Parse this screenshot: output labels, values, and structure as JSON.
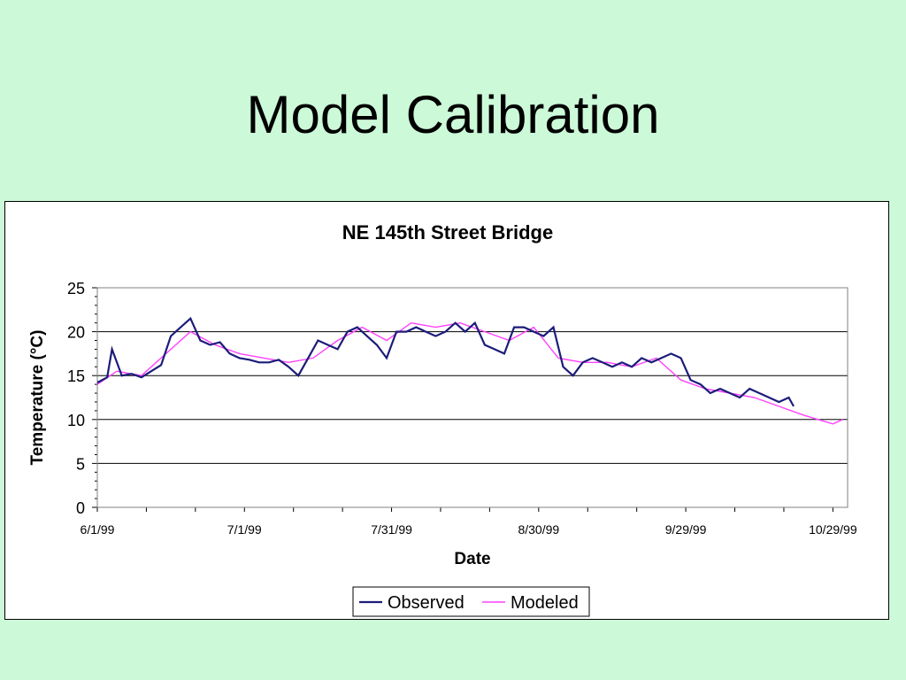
{
  "slide": {
    "title": "Model Calibration"
  },
  "colors": {
    "background": "#ccf9d8",
    "observed": "#1c1c7a",
    "modeled": "#ff40ff",
    "grid": "#000000"
  },
  "chart_data": {
    "type": "line",
    "title": "NE 145th Street Bridge",
    "xlabel": "Date",
    "ylabel": "Temperature (°C)",
    "ylim": [
      0,
      25
    ],
    "yticks": [
      0,
      5,
      10,
      15,
      20,
      25
    ],
    "xlim": [
      "1999-06-01",
      "1999-11-01"
    ],
    "xticks": [
      {
        "date": "1999-06-01",
        "label": "6/1/99"
      },
      {
        "date": "1999-07-01",
        "label": "7/1/99"
      },
      {
        "date": "1999-07-31",
        "label": "7/31/99"
      },
      {
        "date": "1999-08-30",
        "label": "8/30/99"
      },
      {
        "date": "1999-09-29",
        "label": "9/29/99"
      },
      {
        "date": "1999-10-29",
        "label": "10/29/99"
      }
    ],
    "grid": "horizontal",
    "legend": "bottom-center",
    "series": [
      {
        "name": "Observed",
        "color": "#1c1c7a",
        "x": [
          "1999-06-01",
          "1999-06-03",
          "1999-06-04",
          "1999-06-06",
          "1999-06-08",
          "1999-06-10",
          "1999-06-12",
          "1999-06-14",
          "1999-06-16",
          "1999-06-18",
          "1999-06-20",
          "1999-06-22",
          "1999-06-24",
          "1999-06-26",
          "1999-06-28",
          "1999-06-30",
          "1999-07-02",
          "1999-07-04",
          "1999-07-06",
          "1999-07-08",
          "1999-07-10",
          "1999-07-12",
          "1999-07-14",
          "1999-07-16",
          "1999-07-18",
          "1999-07-20",
          "1999-07-22",
          "1999-07-24",
          "1999-07-26",
          "1999-07-28",
          "1999-07-30",
          "1999-08-01",
          "1999-08-03",
          "1999-08-05",
          "1999-08-07",
          "1999-08-09",
          "1999-08-11",
          "1999-08-13",
          "1999-08-15",
          "1999-08-17",
          "1999-08-19",
          "1999-08-21",
          "1999-08-23",
          "1999-08-25",
          "1999-08-27",
          "1999-08-29",
          "1999-08-31",
          "1999-09-02",
          "1999-09-04",
          "1999-09-06",
          "1999-09-08",
          "1999-09-10",
          "1999-09-12",
          "1999-09-14",
          "1999-09-16",
          "1999-09-18",
          "1999-09-20",
          "1999-09-22",
          "1999-09-24",
          "1999-09-26",
          "1999-09-28",
          "1999-09-30",
          "1999-10-02",
          "1999-10-04",
          "1999-10-06",
          "1999-10-08",
          "1999-10-10",
          "1999-10-12",
          "1999-10-14",
          "1999-10-16",
          "1999-10-18",
          "1999-10-20",
          "1999-10-21"
        ],
        "y": [
          14.2,
          14.8,
          18.0,
          15.0,
          15.2,
          14.8,
          15.5,
          16.2,
          19.5,
          20.5,
          21.5,
          19.0,
          18.5,
          18.8,
          17.5,
          17.0,
          16.8,
          16.5,
          16.5,
          16.8,
          16.0,
          15.0,
          17.0,
          19.0,
          18.5,
          18.0,
          20.0,
          20.5,
          19.5,
          18.5,
          17.0,
          20.0,
          20.0,
          20.5,
          20.0,
          19.5,
          20.0,
          21.0,
          20.0,
          21.0,
          18.5,
          18.0,
          17.5,
          20.5,
          20.5,
          20.0,
          19.5,
          20.5,
          16.0,
          15.0,
          16.5,
          17.0,
          16.5,
          16.0,
          16.5,
          16.0,
          17.0,
          16.5,
          17.0,
          17.5,
          17.0,
          14.5,
          14.0,
          13.0,
          13.5,
          13.0,
          12.5,
          13.5,
          13.0,
          12.5,
          12.0,
          12.5,
          11.5
        ]
      },
      {
        "name": "Modeled",
        "color": "#ff40ff",
        "x": [
          "1999-06-01",
          "1999-06-05",
          "1999-06-10",
          "1999-06-15",
          "1999-06-20",
          "1999-06-25",
          "1999-06-30",
          "1999-07-05",
          "1999-07-10",
          "1999-07-15",
          "1999-07-20",
          "1999-07-25",
          "1999-07-30",
          "1999-08-04",
          "1999-08-09",
          "1999-08-14",
          "1999-08-19",
          "1999-08-24",
          "1999-08-29",
          "1999-09-03",
          "1999-09-08",
          "1999-09-13",
          "1999-09-18",
          "1999-09-23",
          "1999-09-28",
          "1999-10-03",
          "1999-10-08",
          "1999-10-13",
          "1999-10-18",
          "1999-10-23",
          "1999-10-26",
          "1999-10-29",
          "1999-10-31"
        ],
        "y": [
          14.0,
          15.5,
          15.0,
          17.5,
          20.0,
          18.5,
          17.5,
          17.0,
          16.5,
          17.0,
          19.0,
          20.5,
          19.0,
          21.0,
          20.5,
          21.0,
          20.0,
          19.0,
          20.5,
          17.0,
          16.5,
          16.5,
          16.0,
          17.0,
          14.5,
          13.5,
          13.0,
          12.5,
          11.5,
          10.5,
          10.0,
          9.5,
          10.0
        ]
      }
    ]
  }
}
